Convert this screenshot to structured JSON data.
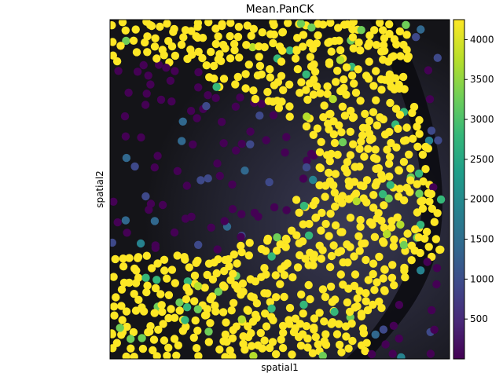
{
  "chart_data": {
    "type": "scatter",
    "title": "Mean.PanCK",
    "xlabel": "spatial1",
    "ylabel": "spatial2",
    "colormap": "viridis",
    "color_range": [
      0,
      4250
    ],
    "colorbar_ticks": [
      500,
      1000,
      1500,
      2000,
      2500,
      3000,
      3500,
      4000
    ],
    "colorbar_tick_labels": [
      "500",
      "1000",
      "1500",
      "2000",
      "2500",
      "3000",
      "3500",
      "4000"
    ],
    "background": "fluorescence tissue image (dark, grayscale with purple/teal tones)",
    "regions": [
      {
        "name": "top-band",
        "value": 4250
      },
      {
        "name": "right-arc",
        "value": 4250
      },
      {
        "name": "bottom-band",
        "value": 4250
      },
      {
        "name": "center-left",
        "value": 150
      },
      {
        "name": "transition",
        "value": 1200
      }
    ]
  },
  "colors": {
    "viridis": [
      "#440154",
      "#482878",
      "#3e4989",
      "#31688e",
      "#26828e",
      "#1f9e89",
      "#35b779",
      "#6ece58",
      "#b5de2b",
      "#fde725"
    ]
  }
}
